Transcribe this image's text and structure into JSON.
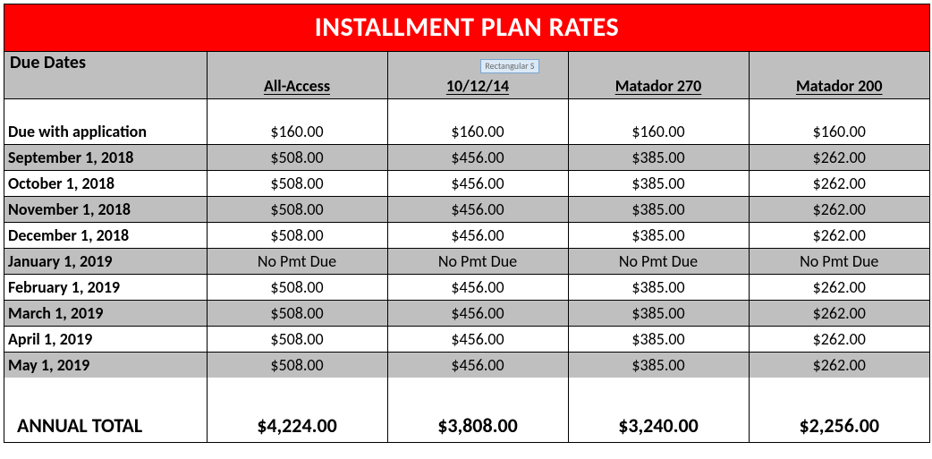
{
  "title": "INSTALLMENT PLAN RATES",
  "columns": {
    "dueDates": "Due Dates",
    "c1": "All-Access",
    "c2": "10/12/14",
    "c3": "Matador 270",
    "c4": "Matador 200"
  },
  "artifact": "Rectangular S",
  "rows": [
    {
      "label": "Due with application",
      "shaded": false,
      "c1": "$160.00",
      "c2": "$160.00",
      "c3": "$160.00",
      "c4": "$160.00"
    },
    {
      "label": "September 1, 2018",
      "shaded": true,
      "c1": "$508.00",
      "c2": "$456.00",
      "c3": "$385.00",
      "c4": "$262.00"
    },
    {
      "label": "October 1, 2018",
      "shaded": false,
      "c1": "$508.00",
      "c2": "$456.00",
      "c3": "$385.00",
      "c4": "$262.00"
    },
    {
      "label": "November 1, 2018",
      "shaded": true,
      "c1": "$508.00",
      "c2": "$456.00",
      "c3": "$385.00",
      "c4": "$262.00"
    },
    {
      "label": "December 1, 2018",
      "shaded": false,
      "c1": "$508.00",
      "c2": "$456.00",
      "c3": "$385.00",
      "c4": "$262.00"
    },
    {
      "label": "January 1, 2019",
      "shaded": true,
      "c1": "No Pmt Due",
      "c2": "No Pmt Due",
      "c3": "No Pmt Due",
      "c4": "No Pmt Due"
    },
    {
      "label": "February 1, 2019",
      "shaded": false,
      "c1": "$508.00",
      "c2": "$456.00",
      "c3": "$385.00",
      "c4": "$262.00"
    },
    {
      "label": "March 1, 2019",
      "shaded": true,
      "c1": "$508.00",
      "c2": "$456.00",
      "c3": "$385.00",
      "c4": "$262.00"
    },
    {
      "label": "April 1, 2019",
      "shaded": false,
      "c1": "$508.00",
      "c2": "$456.00",
      "c3": "$385.00",
      "c4": "$262.00"
    },
    {
      "label": "May 1, 2019",
      "shaded": true,
      "c1": "$508.00",
      "c2": "$456.00",
      "c3": "$385.00",
      "c4": "$262.00"
    }
  ],
  "total": {
    "label": "ANNUAL TOTAL",
    "c1": "$4,224.00",
    "c2": "$3,808.00",
    "c3": "$3,240.00",
    "c4": "$2,256.00"
  },
  "colors": {
    "titleBg": "#fe0000",
    "titleText": "#ffffff",
    "shadedRow": "#bfbfbf",
    "border": "#000000",
    "background": "#ffffff"
  },
  "layout": {
    "widthPx": 1034,
    "titleFontSize": 30,
    "bodyFontSize": 18,
    "totalFontSize": 22,
    "col0WidthPx": 226,
    "colXWidthPx": 202
  }
}
